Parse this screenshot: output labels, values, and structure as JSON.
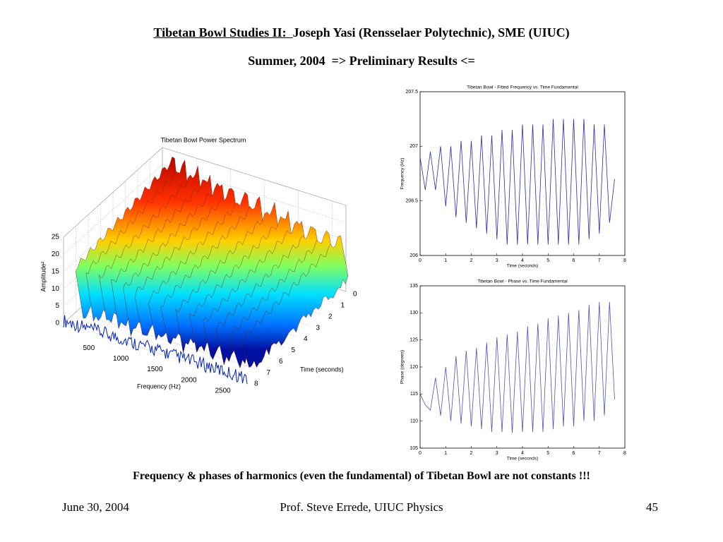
{
  "header": {
    "title_underlined": "Tibetan Bowl Studies II:",
    "title_rest": "Joseph Yasi (Rensselaer Polytechnic), SME (UIUC)",
    "subtitle": "Summer, 2004  => Preliminary Results <="
  },
  "caption": "Frequency & phases of harmonics (even the fundamental) of Tibetan Bowl are not constants !!!",
  "footer": {
    "date": "June 30, 2004",
    "author": "Prof. Steve Errede, UIUC Physics",
    "page": "45"
  },
  "chart_data": [
    {
      "type": "surface",
      "title": "Tibetan Bowl Power Spectrum",
      "xlabel": "Frequency (Hz)",
      "ylabel": "Time (seconds)",
      "zlabel": "Amplitude²",
      "xlim": [
        0,
        2700
      ],
      "xticks": [
        500,
        1000,
        1500,
        2000,
        2500
      ],
      "ylim": [
        0,
        8
      ],
      "yticks": [
        0,
        1,
        2,
        3,
        4,
        5,
        6,
        7,
        8
      ],
      "zlim": [
        0,
        25
      ],
      "zticks": [
        0,
        5,
        10,
        15,
        20,
        25
      ]
    },
    {
      "type": "line",
      "title": "Tibetan Bowl - Fitted Frequency vs. Time Fundamental",
      "xlabel": "Time (seconds)",
      "ylabel": "Frequency (Hz)",
      "xlim": [
        0,
        8
      ],
      "xticks": [
        0,
        1,
        2,
        3,
        4,
        5,
        6,
        7,
        8
      ],
      "ylim": [
        206,
        207.5
      ],
      "yticks": [
        206,
        206.5,
        207,
        207.5
      ],
      "x": [
        0,
        0.2,
        0.4,
        0.6,
        0.8,
        1.0,
        1.2,
        1.4,
        1.6,
        1.8,
        2.0,
        2.2,
        2.4,
        2.6,
        2.8,
        3.0,
        3.2,
        3.4,
        3.6,
        3.8,
        4.0,
        4.2,
        4.4,
        4.6,
        4.8,
        5.0,
        5.2,
        5.4,
        5.6,
        5.8,
        6.0,
        6.2,
        6.4,
        6.6,
        6.8,
        7.0,
        7.2,
        7.4,
        7.6
      ],
      "series": [
        {
          "color": "#2b2bb0",
          "values": [
            206.9,
            206.6,
            206.95,
            206.6,
            207.0,
            206.45,
            207.0,
            206.35,
            207.05,
            206.3,
            207.05,
            206.25,
            207.1,
            206.2,
            207.1,
            206.15,
            207.15,
            206.1,
            207.15,
            206.1,
            207.2,
            206.1,
            207.2,
            206.1,
            207.2,
            206.1,
            207.25,
            206.1,
            207.25,
            206.1,
            207.25,
            206.1,
            207.25,
            206.15,
            207.2,
            206.2,
            207.2,
            206.3,
            206.7
          ]
        }
      ]
    },
    {
      "type": "line",
      "title": "Tibetan Bowl - Phase vs. Time Fundamental",
      "xlabel": "Time (seconds)",
      "ylabel": "Phase (degrees)",
      "xlim": [
        0,
        8
      ],
      "xticks": [
        0,
        1,
        2,
        3,
        4,
        5,
        6,
        7,
        8
      ],
      "ylim": [
        105,
        135
      ],
      "yticks": [
        105,
        110,
        115,
        120,
        125,
        130,
        135
      ],
      "x": [
        0,
        0.2,
        0.4,
        0.6,
        0.8,
        1.0,
        1.2,
        1.4,
        1.6,
        1.8,
        2.0,
        2.2,
        2.4,
        2.6,
        2.8,
        3.0,
        3.2,
        3.4,
        3.6,
        3.8,
        4.0,
        4.2,
        4.4,
        4.6,
        4.8,
        5.0,
        5.2,
        5.4,
        5.6,
        5.8,
        6.0,
        6.2,
        6.4,
        6.6,
        6.8,
        7.0,
        7.2,
        7.4,
        7.6
      ],
      "series": [
        {
          "color": "#5050c0",
          "values": [
            115,
            113,
            112,
            118,
            111,
            120,
            110,
            122,
            109.5,
            123,
            109,
            123.5,
            108.5,
            124.5,
            108,
            125.5,
            108,
            126,
            107.8,
            126.5,
            108,
            127.5,
            108,
            128,
            108,
            129,
            108.5,
            129.5,
            109,
            130,
            109,
            130.5,
            110,
            131.5,
            110,
            132,
            111,
            132,
            114
          ]
        }
      ]
    }
  ]
}
